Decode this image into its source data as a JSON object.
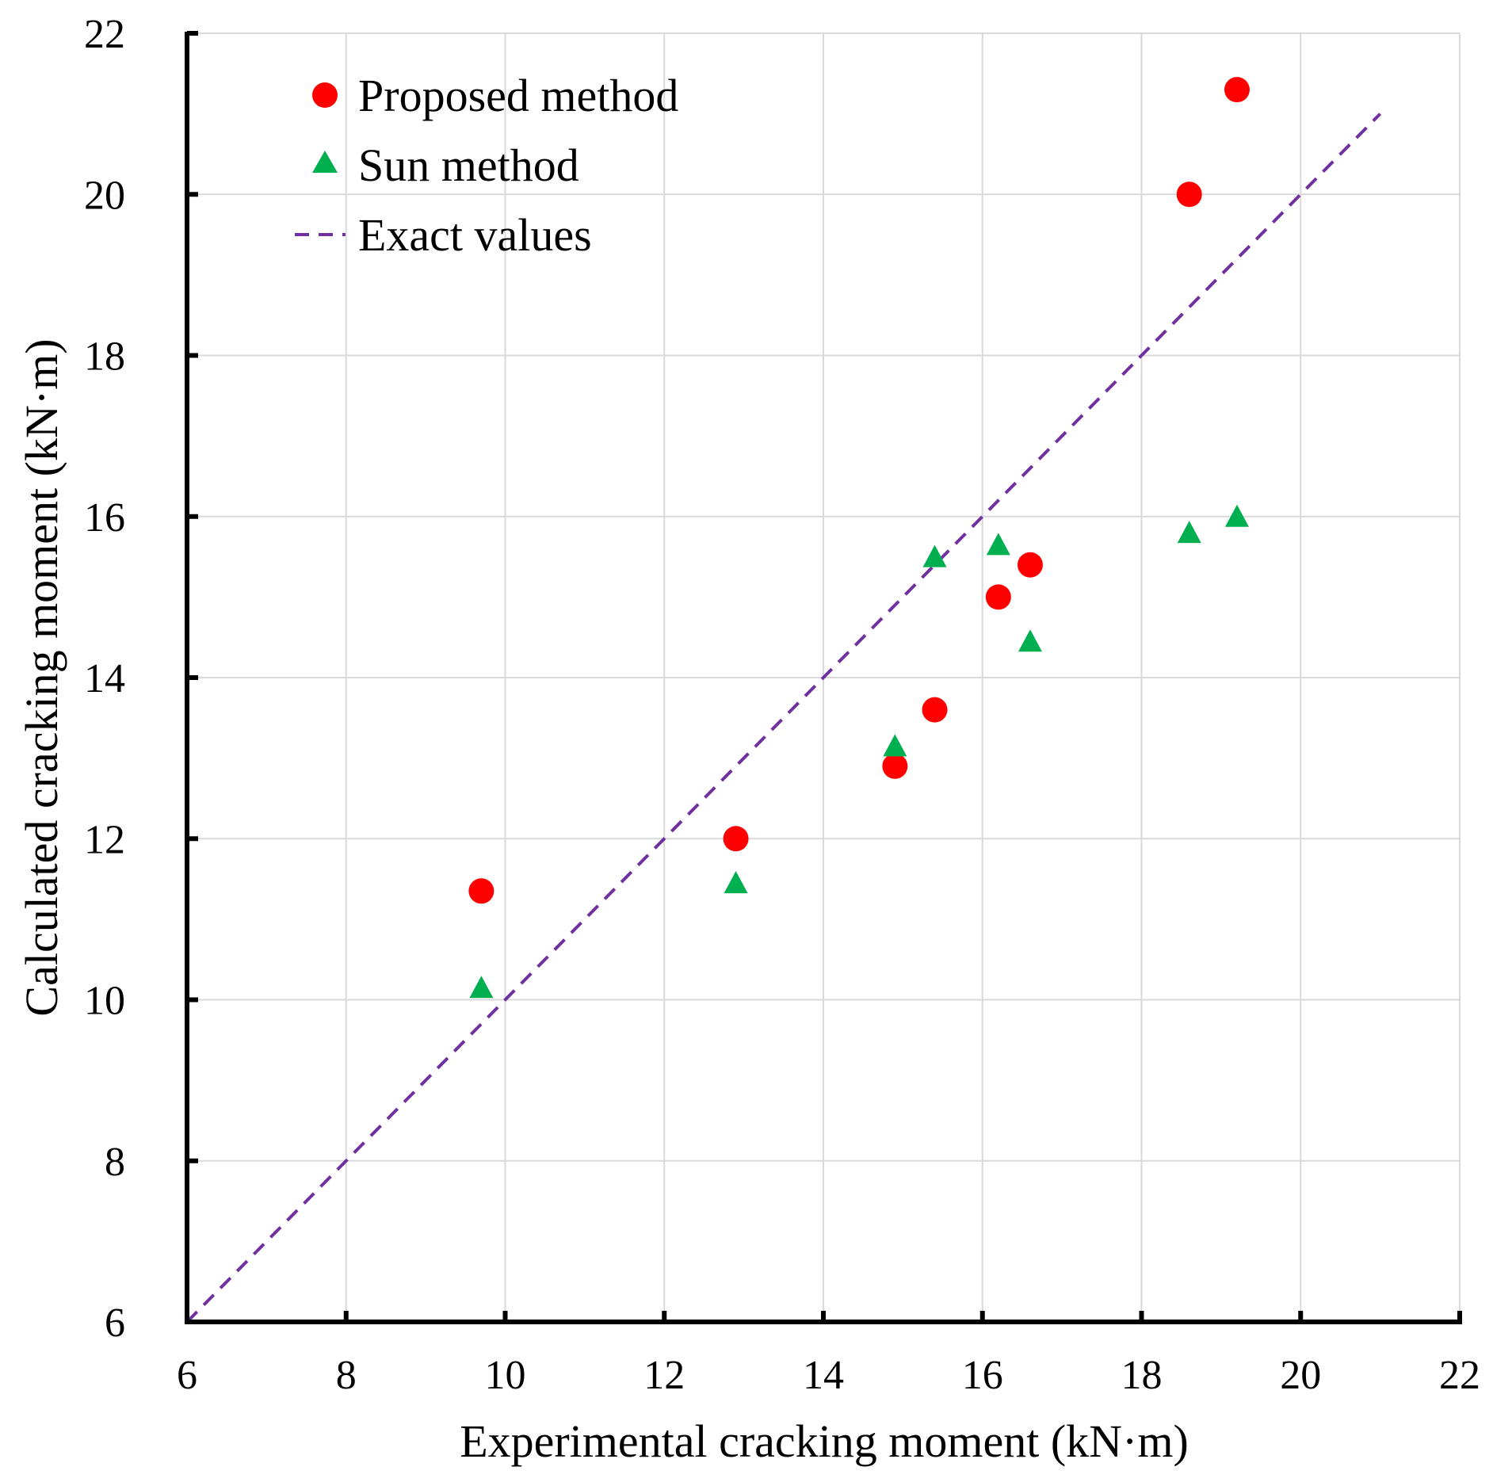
{
  "chart_data": {
    "type": "scatter",
    "title": "",
    "xlabel": "Experimental cracking moment (kN·m)",
    "ylabel": "Calculated cracking moment (kN·m)",
    "xlim": [
      6,
      22
    ],
    "ylim": [
      6,
      22
    ],
    "x_ticks": [
      "6",
      "8",
      "10",
      "12",
      "14",
      "16",
      "18",
      "20",
      "22"
    ],
    "y_ticks": [
      "6",
      "8",
      "10",
      "12",
      "14",
      "16",
      "18",
      "20",
      "22"
    ],
    "grid": true,
    "legend_position": "top-left",
    "series": [
      {
        "name": "Proposed method",
        "marker": "circle",
        "color": "#ff0000",
        "points": [
          {
            "x": 9.7,
            "y": 11.35
          },
          {
            "x": 12.9,
            "y": 12.0
          },
          {
            "x": 14.9,
            "y": 12.9
          },
          {
            "x": 15.4,
            "y": 13.6
          },
          {
            "x": 16.2,
            "y": 15.0
          },
          {
            "x": 16.6,
            "y": 15.4
          },
          {
            "x": 18.6,
            "y": 20.0
          },
          {
            "x": 19.2,
            "y": 21.3
          }
        ]
      },
      {
        "name": "Sun method",
        "marker": "triangle",
        "color": "#00b050",
        "points": [
          {
            "x": 9.7,
            "y": 10.15
          },
          {
            "x": 12.9,
            "y": 11.45
          },
          {
            "x": 14.9,
            "y": 13.15
          },
          {
            "x": 15.4,
            "y": 15.5
          },
          {
            "x": 16.2,
            "y": 15.65
          },
          {
            "x": 16.6,
            "y": 14.45
          },
          {
            "x": 18.6,
            "y": 15.8
          },
          {
            "x": 19.2,
            "y": 16.0
          }
        ]
      },
      {
        "name": "Exact values",
        "marker": "dashed-line",
        "color": "#7030a0",
        "points": [
          {
            "x": 6,
            "y": 6
          },
          {
            "x": 21,
            "y": 21
          }
        ]
      }
    ]
  }
}
